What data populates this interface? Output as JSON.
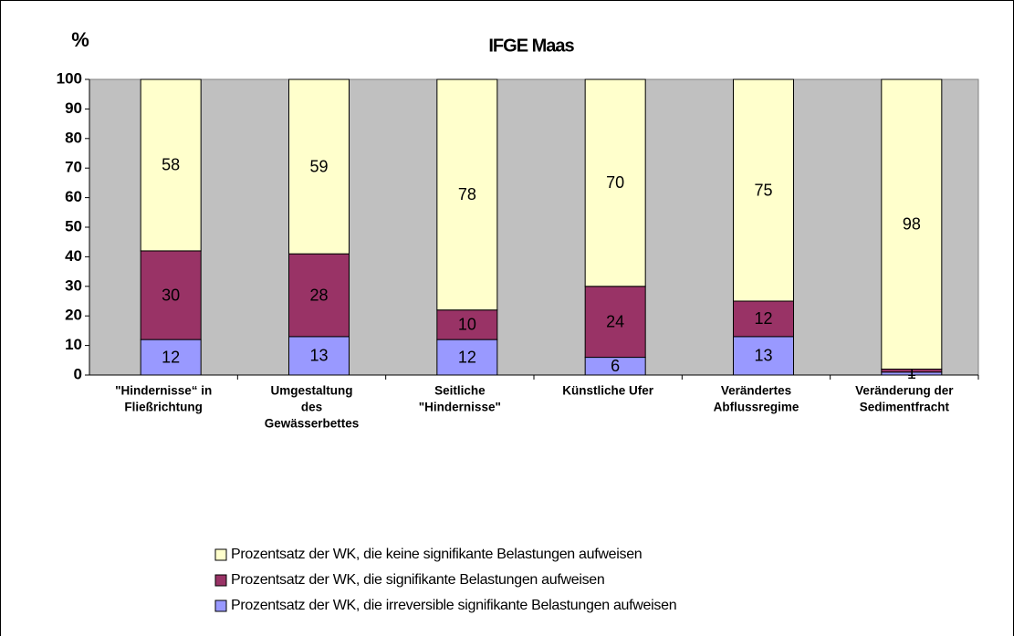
{
  "chart_data": {
    "type": "stacked_bar",
    "title": "IFGE Maas",
    "y_label": "%",
    "categories": [
      [
        "\"Hindernisse“ in",
        "Fließrichtung"
      ],
      [
        "Umgestaltung",
        "des",
        "Gewässerbettes"
      ],
      [
        "Seitliche",
        "\"Hindernisse\""
      ],
      [
        "Künstliche Ufer"
      ],
      [
        "Verändertes",
        "Abflussregime"
      ],
      [
        "Veränderung der",
        "Sedimentfracht"
      ]
    ],
    "series": [
      {
        "name": "Prozentsatz der WK, die irreversible signifikante Belastungen aufweisen",
        "color": "#9999ff",
        "values": [
          12,
          13,
          12,
          6,
          13,
          1
        ]
      },
      {
        "name": "Prozentsatz der WK, die signifikante Belastungen aufweisen",
        "color": "#993366",
        "values": [
          30,
          28,
          10,
          24,
          12,
          1
        ]
      },
      {
        "name": "Prozentsatz der WK, die keine signifikante Belastungen aufweisen",
        "color": "#ffffcc",
        "values": [
          58,
          59,
          78,
          70,
          75,
          98
        ]
      }
    ],
    "ylim": [
      0,
      100
    ],
    "yticks": [
      0,
      10,
      20,
      30,
      40,
      50,
      60,
      70,
      80,
      90,
      100
    ],
    "grid": false,
    "plot_background": "#c0c0c0",
    "legend": "bottom"
  }
}
